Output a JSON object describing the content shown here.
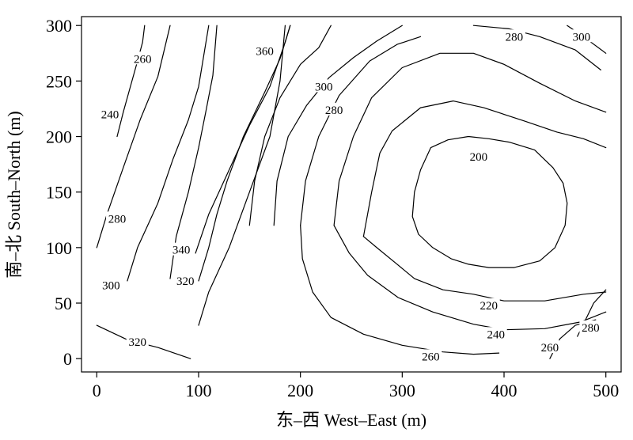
{
  "chart_data": {
    "type": "contour",
    "xlabel": "东–西 West–East (m)",
    "ylabel": "南–北 South–North (m)",
    "xlim": [
      -15,
      515
    ],
    "ylim": [
      -12,
      308
    ],
    "xticks": [
      0,
      100,
      200,
      300,
      400,
      500
    ],
    "yticks": [
      0,
      50,
      100,
      150,
      200,
      250,
      300
    ],
    "grid": false,
    "contours": [
      {
        "level": 200,
        "points": [
          [
            328,
            190
          ],
          [
            345,
            197
          ],
          [
            365,
            200
          ],
          [
            385,
            198
          ],
          [
            405,
            195
          ],
          [
            430,
            188
          ],
          [
            448,
            172
          ],
          [
            458,
            158
          ],
          [
            462,
            140
          ],
          [
            460,
            120
          ],
          [
            450,
            100
          ],
          [
            435,
            88
          ],
          [
            410,
            82
          ],
          [
            385,
            82
          ],
          [
            365,
            85
          ],
          [
            348,
            90
          ],
          [
            330,
            100
          ],
          [
            316,
            112
          ],
          [
            310,
            128
          ],
          [
            312,
            150
          ],
          [
            318,
            170
          ],
          [
            328,
            190
          ]
        ]
      },
      {
        "level": 220,
        "points": [
          [
            262,
            110
          ],
          [
            270,
            150
          ],
          [
            278,
            185
          ],
          [
            290,
            205
          ],
          [
            318,
            226
          ],
          [
            350,
            232
          ],
          [
            380,
            226
          ],
          [
            420,
            214
          ],
          [
            452,
            204
          ],
          [
            478,
            198
          ],
          [
            500,
            190
          ]
        ]
      },
      {
        "level": 220,
        "points": [
          [
            500,
            60
          ],
          [
            478,
            58
          ],
          [
            440,
            52
          ],
          [
            400,
            52
          ],
          [
            370,
            58
          ],
          [
            340,
            62
          ],
          [
            312,
            72
          ],
          [
            295,
            85
          ],
          [
            275,
            100
          ],
          [
            262,
            110
          ]
        ]
      },
      {
        "level": 240,
        "points": [
          [
            233,
            120
          ],
          [
            238,
            160
          ],
          [
            252,
            200
          ],
          [
            270,
            235
          ],
          [
            300,
            262
          ],
          [
            337,
            275
          ],
          [
            370,
            275
          ],
          [
            400,
            265
          ],
          [
            435,
            248
          ],
          [
            470,
            232
          ],
          [
            500,
            222
          ]
        ]
      },
      {
        "level": 240,
        "points": [
          [
            500,
            42
          ],
          [
            475,
            33
          ],
          [
            440,
            27
          ],
          [
            400,
            26
          ],
          [
            370,
            31
          ],
          [
            330,
            42
          ],
          [
            296,
            55
          ],
          [
            266,
            75
          ],
          [
            248,
            95
          ],
          [
            233,
            120
          ]
        ]
      },
      {
        "level": 260,
        "points": [
          [
            200,
            120
          ],
          [
            205,
            160
          ],
          [
            218,
            200
          ],
          [
            238,
            237
          ],
          [
            268,
            268
          ],
          [
            295,
            283
          ],
          [
            318,
            290
          ]
        ]
      },
      {
        "level": 260,
        "points": [
          [
            395,
            5
          ],
          [
            370,
            4
          ],
          [
            340,
            6
          ],
          [
            300,
            12
          ],
          [
            262,
            22
          ],
          [
            230,
            37
          ],
          [
            212,
            60
          ],
          [
            202,
            90
          ],
          [
            200,
            120
          ]
        ]
      },
      {
        "level": 260,
        "points": [
          [
            20,
            200
          ],
          [
            26,
            222
          ],
          [
            33,
            245
          ],
          [
            40,
            268
          ],
          [
            45,
            285
          ],
          [
            47,
            300
          ]
        ]
      },
      {
        "level": 260,
        "points": [
          [
            445,
            0
          ],
          [
            455,
            18
          ],
          [
            470,
            30
          ],
          [
            490,
            35
          ]
        ]
      },
      {
        "level": 280,
        "points": [
          [
            174,
            120
          ],
          [
            177,
            160
          ],
          [
            188,
            200
          ],
          [
            206,
            228
          ],
          [
            228,
            253
          ],
          [
            252,
            271
          ],
          [
            275,
            286
          ],
          [
            300,
            300
          ]
        ]
      },
      {
        "level": 280,
        "points": [
          [
            0,
            100
          ],
          [
            10,
            130
          ],
          [
            26,
            172
          ],
          [
            43,
            216
          ],
          [
            60,
            254
          ],
          [
            72,
            300
          ]
        ]
      },
      {
        "level": 280,
        "points": [
          [
            370,
            300
          ],
          [
            405,
            297
          ],
          [
            435,
            290
          ],
          [
            470,
            278
          ],
          [
            495,
            260
          ]
        ]
      },
      {
        "level": 280,
        "points": [
          [
            472,
            20
          ],
          [
            488,
            50
          ],
          [
            500,
            62
          ]
        ]
      },
      {
        "level": 300,
        "points": [
          [
            30,
            70
          ],
          [
            40,
            100
          ],
          [
            60,
            140
          ],
          [
            75,
            180
          ],
          [
            90,
            215
          ],
          [
            100,
            245
          ],
          [
            110,
            300
          ]
        ]
      },
      {
        "level": 300,
        "points": [
          [
            150,
            120
          ],
          [
            155,
            160
          ],
          [
            165,
            200
          ],
          [
            180,
            235
          ],
          [
            200,
            265
          ],
          [
            218,
            280
          ],
          [
            230,
            300
          ]
        ]
      },
      {
        "level": 300,
        "points": [
          [
            462,
            300
          ],
          [
            478,
            290
          ],
          [
            500,
            275
          ]
        ]
      },
      {
        "level": 320,
        "points": [
          [
            72,
            72
          ],
          [
            78,
            110
          ],
          [
            90,
            150
          ],
          [
            100,
            190
          ],
          [
            107,
            222
          ],
          [
            114,
            255
          ],
          [
            118,
            300
          ]
        ]
      },
      {
        "level": 320,
        "points": [
          [
            0,
            30
          ],
          [
            30,
            17
          ],
          [
            60,
            10
          ],
          [
            92,
            0
          ]
        ]
      },
      {
        "level": 320,
        "points": [
          [
            100,
            70
          ],
          [
            110,
            100
          ],
          [
            118,
            130
          ],
          [
            128,
            160
          ],
          [
            144,
            200
          ],
          [
            165,
            240
          ],
          [
            180,
            270
          ],
          [
            190,
            300
          ]
        ]
      },
      {
        "level": 340,
        "points": [
          [
            97,
            95
          ],
          [
            110,
            130
          ],
          [
            130,
            170
          ],
          [
            150,
            210
          ],
          [
            170,
            245
          ],
          [
            185,
            285
          ],
          [
            190,
            300
          ]
        ]
      },
      {
        "level": 360,
        "points": [
          [
            100,
            30
          ],
          [
            110,
            60
          ],
          [
            130,
            100
          ],
          [
            150,
            150
          ],
          [
            170,
            200
          ],
          [
            180,
            250
          ],
          [
            185,
            300
          ]
        ]
      }
    ],
    "contour_labels": [
      {
        "text": "200",
        "x": 375,
        "y": 182
      },
      {
        "text": "220",
        "x": 385,
        "y": 48
      },
      {
        "text": "240",
        "x": 392,
        "y": 22
      },
      {
        "text": "260",
        "x": 328,
        "y": 2
      },
      {
        "text": "260",
        "x": 45,
        "y": 270
      },
      {
        "text": "260",
        "x": 445,
        "y": 10
      },
      {
        "text": "240",
        "x": 13,
        "y": 220
      },
      {
        "text": "280",
        "x": 410,
        "y": 290
      },
      {
        "text": "280",
        "x": 233,
        "y": 224
      },
      {
        "text": "280",
        "x": 20,
        "y": 126
      },
      {
        "text": "280",
        "x": 485,
        "y": 28
      },
      {
        "text": "300",
        "x": 476,
        "y": 290
      },
      {
        "text": "300",
        "x": 223,
        "y": 245
      },
      {
        "text": "300",
        "x": 14,
        "y": 66
      },
      {
        "text": "320",
        "x": 87,
        "y": 70
      },
      {
        "text": "320",
        "x": 40,
        "y": 15
      },
      {
        "text": "340",
        "x": 83,
        "y": 98
      },
      {
        "text": "360",
        "x": 165,
        "y": 277
      }
    ]
  }
}
